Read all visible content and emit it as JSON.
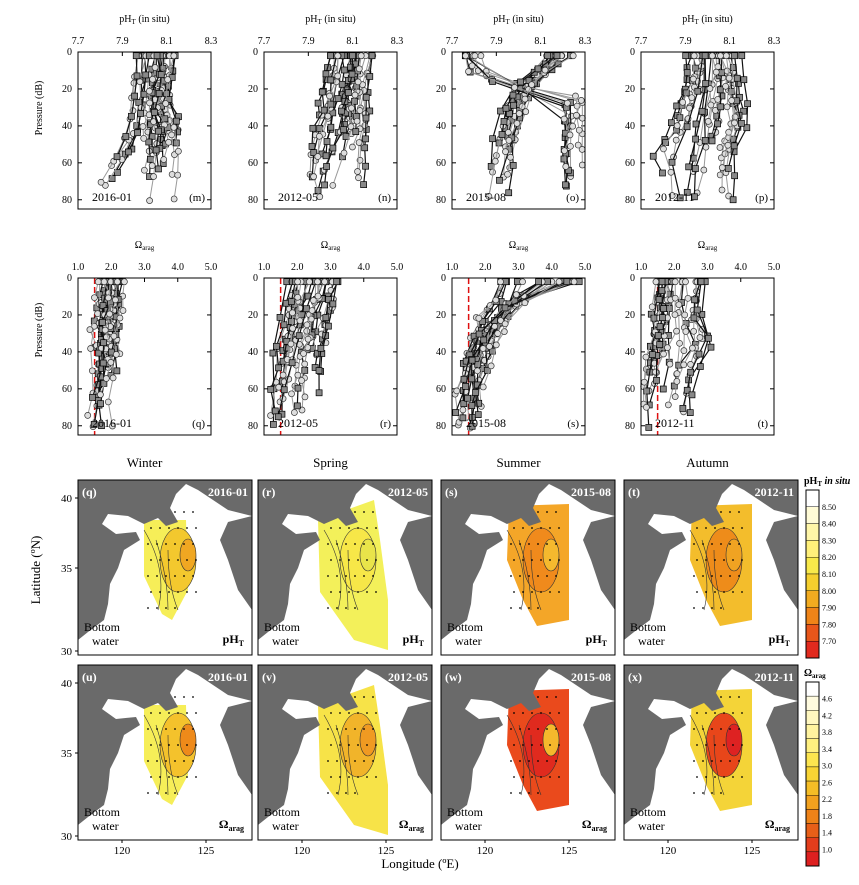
{
  "profile_panels": [
    {
      "id": "m",
      "date": "2016-01",
      "variable": "ph"
    },
    {
      "id": "n",
      "date": "2012-05",
      "variable": "ph"
    },
    {
      "id": "o",
      "date": "2015-08",
      "variable": "ph"
    },
    {
      "id": "p",
      "date": "2012-11",
      "variable": "ph"
    },
    {
      "id": "q",
      "date": "2016-01",
      "variable": "omega",
      "season": "Winter"
    },
    {
      "id": "r",
      "date": "2012-05",
      "variable": "omega",
      "season": "Spring"
    },
    {
      "id": "s",
      "date": "2015-08",
      "variable": "omega",
      "season": "Summer"
    },
    {
      "id": "t",
      "date": "2012-11",
      "variable": "omega",
      "season": "Autumn"
    }
  ],
  "ph_axis": {
    "label_main": "pH",
    "label_sub": "T",
    "label_rest": "(in situ)",
    "ticks": [
      "7.7",
      "7.9",
      "8.1",
      "8.3"
    ]
  },
  "omega_axis": {
    "label_main": "Ω",
    "label_sub": "arag",
    "ticks": [
      "1.0",
      "2.0",
      "3.0",
      "4.0",
      "5.0"
    ]
  },
  "pressure_axis": {
    "label": "Pressure (dB)",
    "ticks": [
      "0",
      "20",
      "40",
      "60",
      "80"
    ]
  },
  "map_panels": [
    {
      "tag": "(q)",
      "date": "2016-01",
      "var": "ph"
    },
    {
      "tag": "(r)",
      "date": "2012-05",
      "var": "ph"
    },
    {
      "tag": "(s)",
      "date": "2015-08",
      "var": "ph"
    },
    {
      "tag": "(t)",
      "date": "2012-11",
      "var": "ph"
    },
    {
      "tag": "(u)",
      "date": "2016-01",
      "var": "om"
    },
    {
      "tag": "(v)",
      "date": "2012-05",
      "var": "om"
    },
    {
      "tag": "(w)",
      "date": "2015-08",
      "var": "om"
    },
    {
      "tag": "(x)",
      "date": "2012-11",
      "var": "om"
    }
  ],
  "map_text": {
    "bottom_water_1": "Bottom",
    "bottom_water_2": "water",
    "ph_var_main": "pH",
    "ph_var_sub": "T",
    "om_var_main": "Ω",
    "om_var_sub": "arag",
    "lat_label": "Latitude (ºN)",
    "lon_label": "Longitude (ºE)",
    "lat_ticks": [
      "40",
      "35",
      "30"
    ],
    "lon_ticks": [
      "120",
      "125"
    ]
  },
  "ph_colorbar": {
    "title_main": "pH",
    "title_sub": "T",
    "title_rest": "in situ",
    "labels": [
      "8.50",
      "8.40",
      "8.30",
      "8.20",
      "8.10",
      "8.00",
      "7.90",
      "7.80",
      "7.70"
    ],
    "colors": [
      "#ffffff",
      "#fffbd6",
      "#fff6a8",
      "#fff07a",
      "#f8e94a",
      "#f5cf2e",
      "#f2ab20",
      "#ef8418",
      "#e8561a",
      "#e22a1e"
    ]
  },
  "om_colorbar": {
    "title_main": "Ω",
    "title_sub": "arag",
    "labels": [
      "4.6",
      "4.2",
      "3.8",
      "3.4",
      "3.0",
      "2.6",
      "2.2",
      "1.8",
      "1.4",
      "1.0"
    ],
    "colors": [
      "#ffffff",
      "#fffbdf",
      "#fff7bf",
      "#fff39f",
      "#fff080",
      "#fce54f",
      "#f8d434",
      "#f5bd26",
      "#f2a11e",
      "#ee8218",
      "#e85f18",
      "#e33d1c",
      "#de2020"
    ]
  },
  "chart_data": [
    {
      "type": "line",
      "panel": "(m)",
      "date": "2016-01",
      "xlabel": "pHT (in situ)",
      "ylabel": "Pressure (dB)",
      "xlim": [
        7.7,
        8.3
      ],
      "ylim": [
        85,
        0
      ],
      "reversed_y": true,
      "series": [
        {
          "name": "",
          "values": [
            [
              8.06,
              2
            ],
            [
              8.05,
              20
            ],
            [
              8.05,
              40
            ],
            [
              8.05,
              60
            ],
            [
              8.03,
              72
            ]
          ]
        },
        {
          "name": "",
          "values": [
            [
              8.1,
              2
            ],
            [
              8.09,
              20
            ],
            [
              8.08,
              40
            ],
            [
              8.08,
              55
            ],
            [
              8.12,
              35
            ]
          ]
        },
        {
          "name": "",
          "values": [
            [
              8.0,
              5
            ],
            [
              7.98,
              30
            ],
            [
              7.95,
              48
            ],
            [
              7.83,
              75
            ],
            [
              7.83,
              80
            ]
          ]
        }
      ]
    },
    {
      "type": "line",
      "panel": "(n)",
      "date": "2012-05",
      "xlabel": "pHT (in situ)",
      "ylabel": "Pressure (dB)",
      "xlim": [
        7.7,
        8.3
      ],
      "ylim": [
        85,
        0
      ],
      "reversed_y": true,
      "series": [
        {
          "name": "",
          "values": [
            [
              8.1,
              2
            ],
            [
              8.08,
              20
            ],
            [
              8.05,
              40
            ],
            [
              8.0,
              60
            ],
            [
              7.97,
              75
            ]
          ]
        },
        {
          "name": "",
          "values": [
            [
              8.15,
              2
            ],
            [
              8.12,
              20
            ],
            [
              8.12,
              45
            ],
            [
              8.1,
              60
            ]
          ]
        },
        {
          "name": "",
          "values": [
            [
              8.02,
              5
            ],
            [
              7.98,
              30
            ],
            [
              7.94,
              45
            ],
            [
              7.92,
              62
            ]
          ]
        }
      ]
    },
    {
      "type": "line",
      "panel": "(o)",
      "date": "2015-08",
      "xlabel": "pHT (in situ)",
      "ylabel": "Pressure (dB)",
      "xlim": [
        7.7,
        8.3
      ],
      "ylim": [
        85,
        0
      ],
      "reversed_y": true,
      "series": [
        {
          "name": "",
          "values": [
            [
              8.2,
              2
            ],
            [
              8.05,
              15
            ],
            [
              7.98,
              30
            ],
            [
              7.93,
              50
            ],
            [
              7.92,
              75
            ]
          ]
        },
        {
          "name": "",
          "values": [
            [
              7.79,
              10
            ],
            [
              7.9,
              15
            ],
            [
              8.05,
              20
            ],
            [
              8.25,
              20
            ]
          ]
        },
        {
          "name": "",
          "values": [
            [
              8.15,
              5
            ],
            [
              8.02,
              20
            ],
            [
              7.95,
              45
            ],
            [
              7.9,
              70
            ]
          ]
        }
      ]
    },
    {
      "type": "line",
      "panel": "(p)",
      "date": "2012-11",
      "xlabel": "pHT (in situ)",
      "ylabel": "Pressure (dB)",
      "xlim": [
        7.7,
        8.3
      ],
      "ylim": [
        85,
        0
      ],
      "reversed_y": true,
      "series": [
        {
          "name": "",
          "values": [
            [
              8.03,
              2
            ],
            [
              8.02,
              20
            ],
            [
              8.0,
              40
            ],
            [
              7.97,
              60
            ],
            [
              7.94,
              75
            ]
          ]
        },
        {
          "name": "",
          "values": [
            [
              8.1,
              2
            ],
            [
              8.12,
              20
            ],
            [
              8.14,
              36
            ],
            [
              8.08,
              58
            ]
          ]
        },
        {
          "name": "",
          "values": [
            [
              7.95,
              10
            ],
            [
              7.88,
              40
            ],
            [
              7.8,
              55
            ],
            [
              7.85,
              70
            ]
          ]
        }
      ]
    },
    {
      "type": "line",
      "panel": "(q)",
      "date": "2016-01",
      "xlabel": "Ωarag",
      "ylabel": "Pressure (dB)",
      "xlim": [
        1.0,
        5.0
      ],
      "ylim": [
        85,
        0
      ],
      "reversed_y": true,
      "reference_line": 1.5,
      "series": [
        {
          "name": "",
          "values": [
            [
              1.9,
              2
            ],
            [
              1.85,
              20
            ],
            [
              1.8,
              40
            ],
            [
              1.7,
              60
            ],
            [
              1.6,
              72
            ]
          ]
        },
        {
          "name": "",
          "values": [
            [
              2.1,
              2
            ],
            [
              2.0,
              20
            ],
            [
              1.95,
              40
            ],
            [
              1.9,
              55
            ]
          ]
        },
        {
          "name": "",
          "values": [
            [
              1.8,
              10
            ],
            [
              1.7,
              45
            ],
            [
              1.45,
              75
            ]
          ]
        }
      ]
    },
    {
      "type": "line",
      "panel": "(r)",
      "date": "2012-05",
      "xlabel": "Ωarag",
      "ylabel": "Pressure (dB)",
      "xlim": [
        1.0,
        5.0
      ],
      "ylim": [
        85,
        0
      ],
      "reversed_y": true,
      "reference_line": 1.5,
      "series": [
        {
          "name": "",
          "values": [
            [
              2.6,
              2
            ],
            [
              2.3,
              20
            ],
            [
              2.0,
              40
            ],
            [
              1.8,
              60
            ],
            [
              1.7,
              75
            ]
          ]
        },
        {
          "name": "",
          "values": [
            [
              3.0,
              2
            ],
            [
              2.8,
              20
            ],
            [
              2.5,
              40
            ]
          ]
        },
        {
          "name": "",
          "values": [
            [
              2.0,
              5
            ],
            [
              1.8,
              30
            ],
            [
              1.6,
              50
            ],
            [
              1.5,
              60
            ]
          ]
        }
      ]
    },
    {
      "type": "line",
      "panel": "(s)",
      "date": "2015-08",
      "xlabel": "Ωarag",
      "ylabel": "Pressure (dB)",
      "xlim": [
        1.0,
        5.0
      ],
      "ylim": [
        85,
        0
      ],
      "reversed_y": true,
      "reference_line": 1.5,
      "series": [
        {
          "name": "",
          "values": [
            [
              4.6,
              2
            ],
            [
              3.2,
              10
            ],
            [
              2.3,
              25
            ],
            [
              1.8,
              45
            ],
            [
              1.4,
              75
            ]
          ]
        },
        {
          "name": "",
          "values": [
            [
              3.8,
              2
            ],
            [
              2.8,
              15
            ],
            [
              2.0,
              35
            ],
            [
              1.6,
              60
            ]
          ]
        },
        {
          "name": "",
          "values": [
            [
              2.8,
              5
            ],
            [
              2.2,
              20
            ],
            [
              1.8,
              40
            ],
            [
              1.5,
              65
            ]
          ]
        }
      ]
    },
    {
      "type": "line",
      "panel": "(t)",
      "date": "2012-11",
      "xlabel": "Ωarag",
      "ylabel": "Pressure (dB)",
      "xlim": [
        1.0,
        5.0
      ],
      "ylim": [
        85,
        0
      ],
      "reversed_y": true,
      "reference_line": 1.5,
      "series": [
        {
          "name": "",
          "values": [
            [
              2.0,
              2
            ],
            [
              1.9,
              20
            ],
            [
              1.8,
              40
            ],
            [
              1.6,
              60
            ],
            [
              1.4,
              72
            ]
          ]
        },
        {
          "name": "",
          "values": [
            [
              2.6,
              2
            ],
            [
              2.5,
              20
            ],
            [
              2.8,
              35
            ],
            [
              2.2,
              55
            ]
          ]
        },
        {
          "name": "",
          "values": [
            [
              1.7,
              10
            ],
            [
              1.5,
              45
            ],
            [
              1.2,
              60
            ],
            [
              1.3,
              70
            ]
          ]
        }
      ]
    }
  ]
}
